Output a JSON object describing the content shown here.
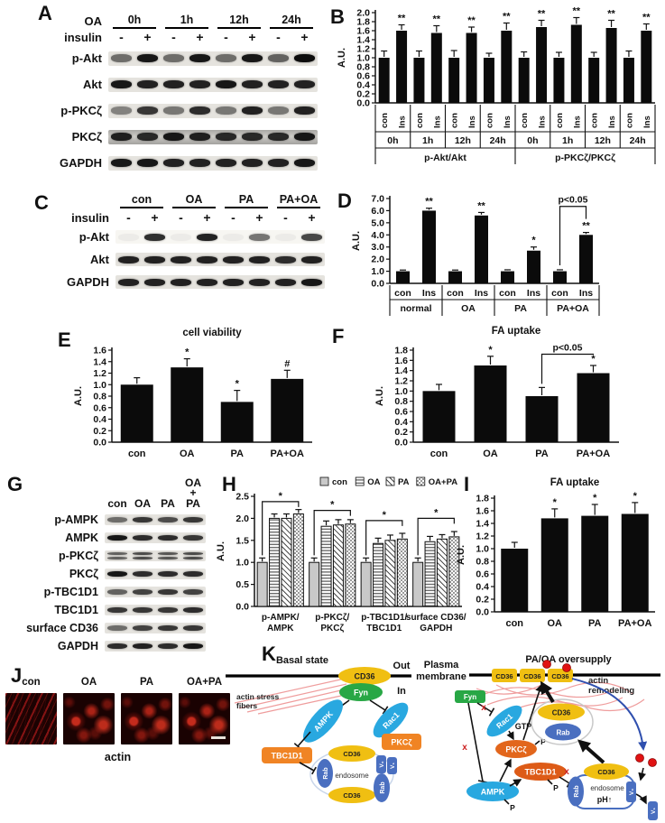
{
  "panels": {
    "A": {
      "label": "A",
      "group_row_label": "OA",
      "groups": [
        "0h",
        "1h",
        "12h",
        "24h"
      ],
      "sign_row_label": "insulin",
      "signs": [
        "-",
        "+",
        "-",
        "+",
        "-",
        "+",
        "-",
        "+"
      ],
      "rows": [
        {
          "label": "p-Akt",
          "bands": [
            0.55,
            0.95,
            0.55,
            0.95,
            0.55,
            0.95,
            0.6,
            1.0
          ]
        },
        {
          "label": "Akt",
          "bands": [
            0.95,
            0.9,
            0.9,
            0.9,
            0.95,
            0.9,
            0.9,
            0.9
          ]
        },
        {
          "label": "p-PKCζ",
          "bands": [
            0.45,
            0.8,
            0.5,
            0.85,
            0.5,
            0.9,
            0.5,
            0.9
          ]
        },
        {
          "label": "PKCζ",
          "bands": [
            0.9,
            0.85,
            0.95,
            0.9,
            0.85,
            0.85,
            0.85,
            0.95
          ],
          "noisy": true
        },
        {
          "label": "GAPDH",
          "bands": [
            0.95,
            0.95,
            0.9,
            0.9,
            0.9,
            0.9,
            0.9,
            0.95
          ]
        }
      ]
    },
    "B": {
      "label": "B"
    },
    "C": {
      "label": "C",
      "group_row_label": "",
      "groups": [
        "con",
        "OA",
        "PA",
        "PA+OA"
      ],
      "sign_row_label": "insulin",
      "signs": [
        "-",
        "+",
        "-",
        "+",
        "-",
        "+",
        "-",
        "+"
      ],
      "rows": [
        {
          "label": "p-Akt",
          "bands": [
            0.04,
            0.85,
            0.04,
            0.9,
            0.04,
            0.55,
            0.04,
            0.75
          ],
          "light": true
        },
        {
          "label": "Akt",
          "bands": [
            0.9,
            0.9,
            0.9,
            0.9,
            0.9,
            0.9,
            0.85,
            0.9
          ]
        },
        {
          "label": "GAPDH",
          "bands": [
            0.9,
            0.9,
            0.9,
            0.9,
            0.9,
            0.9,
            0.9,
            0.95
          ]
        }
      ]
    },
    "D": {
      "label": "D"
    },
    "E": {
      "label": "E"
    },
    "F": {
      "label": "F"
    },
    "G": {
      "label": "G",
      "lane_labels": [
        "con",
        "OA",
        "PA",
        "OA\n+\nPA"
      ],
      "rows": [
        {
          "label": "p-AMPK",
          "bands": [
            0.55,
            0.8,
            0.7,
            0.8
          ]
        },
        {
          "label": "AMPK",
          "bands": [
            0.95,
            0.85,
            0.85,
            0.8
          ]
        },
        {
          "label": "p-PKCζ",
          "bands": [
            0.6,
            0.7,
            0.65,
            0.7
          ],
          "double": true
        },
        {
          "label": "PKCζ",
          "bands": [
            0.95,
            0.85,
            0.85,
            0.85
          ]
        },
        {
          "label": "p-TBC1D1",
          "bands": [
            0.6,
            0.75,
            0.8,
            0.75
          ]
        },
        {
          "label": "TBC1D1",
          "bands": [
            0.8,
            0.8,
            0.8,
            0.85
          ]
        },
        {
          "label": "surface CD36",
          "bands": [
            0.55,
            0.75,
            0.8,
            0.8
          ]
        },
        {
          "label": "GAPDH",
          "bands": [
            0.85,
            0.9,
            0.85,
            0.95
          ]
        }
      ]
    },
    "H": {
      "label": "H"
    },
    "I": {
      "label": "I"
    },
    "J": {
      "label": "J",
      "image_labels": [
        "con",
        "OA",
        "PA",
        "OA+PA"
      ],
      "caption": "actin"
    },
    "K": {
      "label": "K",
      "basal_title": "Basal state",
      "oversupply_title": "PA/OA oversupply",
      "out": "Out",
      "in_label": "In",
      "plasma_1": "Plasma",
      "plasma_2": "membrane",
      "actin_stress_1": "actin stress",
      "actin_stress_2": "fibers",
      "actin_remod_1": "actin",
      "actin_remod_2": "remodeling",
      "cd36": "CD36",
      "fyn": "Fyn",
      "ampk": "AMPK",
      "rac1": "Rac1",
      "pkcz": "PKCζ",
      "tbc1d1": "TBC1D1",
      "rab": "Rab",
      "endosome": "endosome",
      "gtp": "GTP",
      "ph_up": "pH↑",
      "v0": "V₀",
      "v1": "V₁",
      "p_label": "P",
      "x_mark": "x"
    }
  },
  "chart_data": [
    {
      "id": "B",
      "type": "bar",
      "ylabel": "A.U.",
      "ylim": [
        0,
        2.0
      ],
      "ytick": 0.2,
      "bar_labels": [
        "con",
        "Ins",
        "con",
        "Ins",
        "con",
        "Ins",
        "con",
        "Ins",
        "con",
        "Ins",
        "con",
        "Ins",
        "con",
        "Ins",
        "con",
        "Ins"
      ],
      "values": [
        1.0,
        1.6,
        1.0,
        1.55,
        1.0,
        1.55,
        1.0,
        1.6,
        1.0,
        1.68,
        1.0,
        1.73,
        1.0,
        1.66,
        1.0,
        1.6
      ],
      "errors": [
        0.15,
        0.13,
        0.15,
        0.16,
        0.16,
        0.13,
        0.1,
        0.17,
        0.13,
        0.15,
        0.12,
        0.16,
        0.12,
        0.17,
        0.15,
        0.15
      ],
      "sig": [
        "",
        "**",
        "",
        "**",
        "",
        "**",
        "",
        "**",
        "",
        "**",
        "",
        "**",
        "",
        "**",
        "",
        "**"
      ],
      "groups": [
        "0h",
        "1h",
        "12h",
        "24h",
        "0h",
        "1h",
        "12h",
        "24h"
      ],
      "supergroups": [
        "p-Akt/Akt",
        "p-PKCζ/PKCζ"
      ]
    },
    {
      "id": "D",
      "type": "bar",
      "ylabel": "A.U.",
      "ylim": [
        0,
        7.0
      ],
      "ytick": 1.0,
      "bar_labels": [
        "con",
        "Ins",
        "con",
        "Ins",
        "con",
        "Ins",
        "con",
        "Ins"
      ],
      "values": [
        1.0,
        6.0,
        1.0,
        5.6,
        1.0,
        2.7,
        1.0,
        4.0
      ],
      "errors": [
        0.1,
        0.2,
        0.1,
        0.25,
        0.12,
        0.3,
        0.12,
        0.2
      ],
      "sig": [
        "",
        "**",
        "",
        "**",
        "",
        "*",
        "",
        "**"
      ],
      "groups": [
        "normal",
        "OA",
        "PA",
        "PA+OA"
      ],
      "bracket": {
        "from": 6,
        "to": 7,
        "level": 6.35,
        "label": "p<0.05"
      }
    },
    {
      "id": "E",
      "type": "bar",
      "title": "cell viability",
      "ylabel": "A.U.",
      "ylim": [
        0,
        1.6
      ],
      "ytick": 0.2,
      "categories": [
        "con",
        "OA",
        "PA",
        "PA+OA"
      ],
      "values": [
        1.0,
        1.3,
        0.7,
        1.1
      ],
      "errors": [
        0.12,
        0.15,
        0.2,
        0.15
      ],
      "sig": [
        "",
        "*",
        "*",
        "#"
      ]
    },
    {
      "id": "F",
      "type": "bar",
      "title": "FA uptake",
      "ylabel": "A.U.",
      "ylim": [
        0,
        1.8
      ],
      "ytick": 0.2,
      "categories": [
        "con",
        "OA",
        "PA",
        "PA+OA"
      ],
      "values": [
        1.0,
        1.5,
        0.9,
        1.35
      ],
      "errors": [
        0.13,
        0.18,
        0.17,
        0.15
      ],
      "sig": [
        "",
        "*",
        "",
        "*"
      ],
      "bracket": {
        "from": 2,
        "to": 3,
        "level": 1.72,
        "label": "p<0.05"
      }
    },
    {
      "id": "H",
      "type": "grouped_bar",
      "ylabel": "A.U.",
      "ylim": [
        0,
        2.5
      ],
      "ytick": 0.5,
      "categories": [
        "p-AMPK/\nAMPK",
        "p-PKCζ/\nPKCζ",
        "p-TBC1D1/\nTBC1D1",
        "surface CD36/\nGAPDH"
      ],
      "series": [
        {
          "name": "con",
          "values": [
            1.0,
            1.0,
            1.0,
            1.0
          ],
          "errors": [
            0.1,
            0.1,
            0.1,
            0.1
          ]
        },
        {
          "name": "OA",
          "values": [
            2.0,
            1.82,
            1.43,
            1.47
          ],
          "errors": [
            0.1,
            0.12,
            0.12,
            0.12
          ]
        },
        {
          "name": "PA",
          "values": [
            2.0,
            1.85,
            1.5,
            1.53
          ],
          "errors": [
            0.1,
            0.12,
            0.12,
            0.1
          ]
        },
        {
          "name": "OA+PA",
          "values": [
            2.1,
            1.87,
            1.53,
            1.58
          ],
          "errors": [
            0.1,
            0.1,
            0.13,
            0.12
          ]
        }
      ],
      "sig_brackets": [
        {
          "cat": 0,
          "level": 2.38,
          "label": "*"
        },
        {
          "cat": 1,
          "level": 2.18,
          "label": "*"
        },
        {
          "cat": 2,
          "level": 1.95,
          "label": "*"
        },
        {
          "cat": 3,
          "level": 2.0,
          "label": "*"
        }
      ],
      "legend_position": "top-right"
    },
    {
      "id": "I",
      "type": "bar",
      "title": "FA uptake",
      "ylabel": "A.U.",
      "ylim": [
        0,
        1.8
      ],
      "ytick": 0.2,
      "categories": [
        "con",
        "OA",
        "PA",
        "PA+OA"
      ],
      "values": [
        1.0,
        1.48,
        1.52,
        1.55
      ],
      "errors": [
        0.1,
        0.15,
        0.18,
        0.18
      ],
      "sig": [
        "",
        "*",
        "*",
        "*"
      ]
    }
  ]
}
